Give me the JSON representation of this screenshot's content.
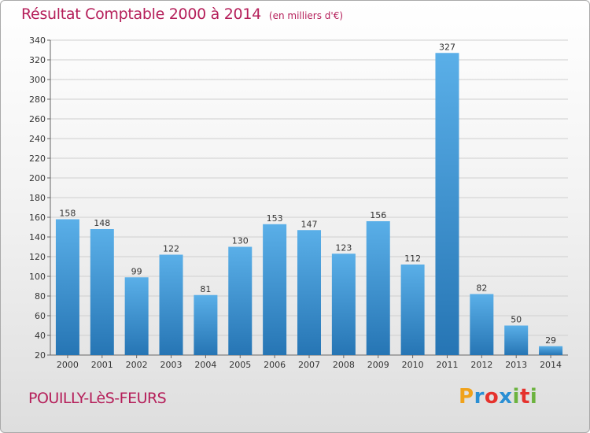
{
  "chart_data": {
    "type": "bar",
    "title": "Résultat Comptable 2000 à 2014",
    "subtitle": "(en milliers d'€)",
    "categories": [
      "2000",
      "2001",
      "2002",
      "2003",
      "2004",
      "2005",
      "2006",
      "2007",
      "2008",
      "2009",
      "2010",
      "2011",
      "2012",
      "2013",
      "2014"
    ],
    "values": [
      158,
      148,
      99,
      122,
      81,
      130,
      153,
      147,
      123,
      156,
      112,
      327,
      82,
      50,
      29
    ],
    "ylim": [
      20,
      340
    ],
    "yticks": [
      20,
      40,
      60,
      80,
      100,
      120,
      140,
      160,
      180,
      200,
      220,
      240,
      260,
      280,
      300,
      320,
      340
    ],
    "grid": true,
    "colors": {
      "bar_top": "#5aafe8",
      "bar_bottom": "#2675b4",
      "title": "#b51f5a"
    }
  },
  "footer": {
    "place": "POUILLY-LèS-FEURS",
    "brand": {
      "letters": [
        "P",
        "r",
        "o",
        "x",
        "i",
        "t",
        "i"
      ],
      "colors": [
        "#f0a21b",
        "#2a8fd4",
        "#e5322d",
        "#2a8fd4",
        "#6cb33f",
        "#e5322d",
        "#6cb33f"
      ]
    }
  }
}
